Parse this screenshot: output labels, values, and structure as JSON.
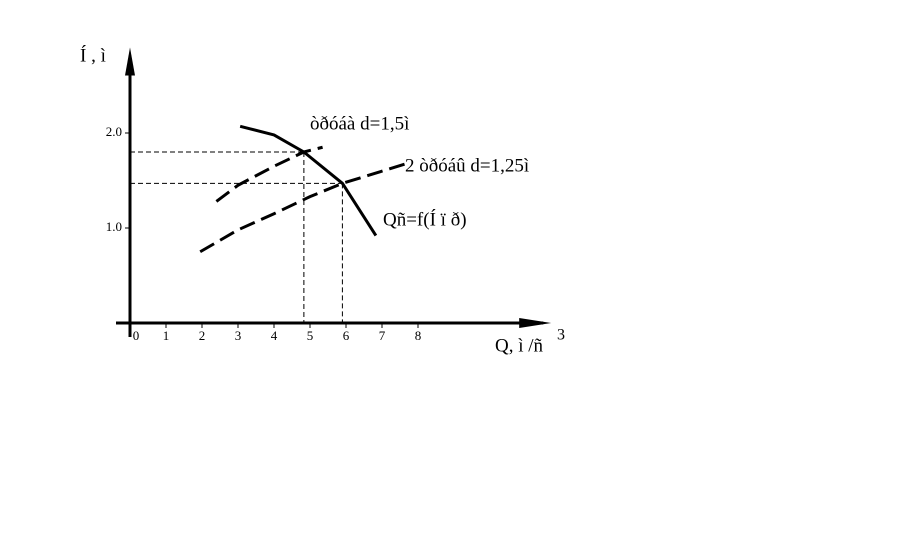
{
  "chart_data": {
    "type": "line",
    "y_label": "Í , ì",
    "x_label": "Q, ì /ñ",
    "x_label_sup": "3",
    "xlim": [
      0,
      11.7
    ],
    "ylim": [
      0,
      2.9
    ],
    "xticks": [
      0,
      1,
      2,
      3,
      4,
      5,
      6,
      7,
      8
    ],
    "yticks": [
      {
        "value": 1,
        "label": "1.0"
      },
      {
        "value": 2,
        "label": "2.0"
      }
    ],
    "series": [
      {
        "name": "òðóáà d=1,5ì",
        "color": "#000000",
        "style": "dashed",
        "x": [
          2.4,
          3,
          4,
          4.83,
          5.35
        ],
        "values": [
          1.28,
          1.45,
          1.65,
          1.8,
          1.85
        ]
      },
      {
        "name": "2 òðóáû  d=1,25ì",
        "color": "#000000",
        "style": "dashed",
        "x": [
          1.95,
          3,
          4,
          5,
          5.9,
          7.7
        ],
        "values": [
          0.75,
          0.98,
          1.15,
          1.33,
          1.47,
          1.68
        ]
      },
      {
        "name": "Qñ=f(Í ï ð)",
        "color": "#000000",
        "style": "solid",
        "x": [
          3.06,
          4,
          4.83,
          5.9,
          6.83
        ],
        "values": [
          2.07,
          1.98,
          1.8,
          1.47,
          0.92
        ]
      }
    ],
    "reference_points": [
      {
        "x": 4.83,
        "y": 1.8
      },
      {
        "x": 5.9,
        "y": 1.47
      }
    ]
  }
}
